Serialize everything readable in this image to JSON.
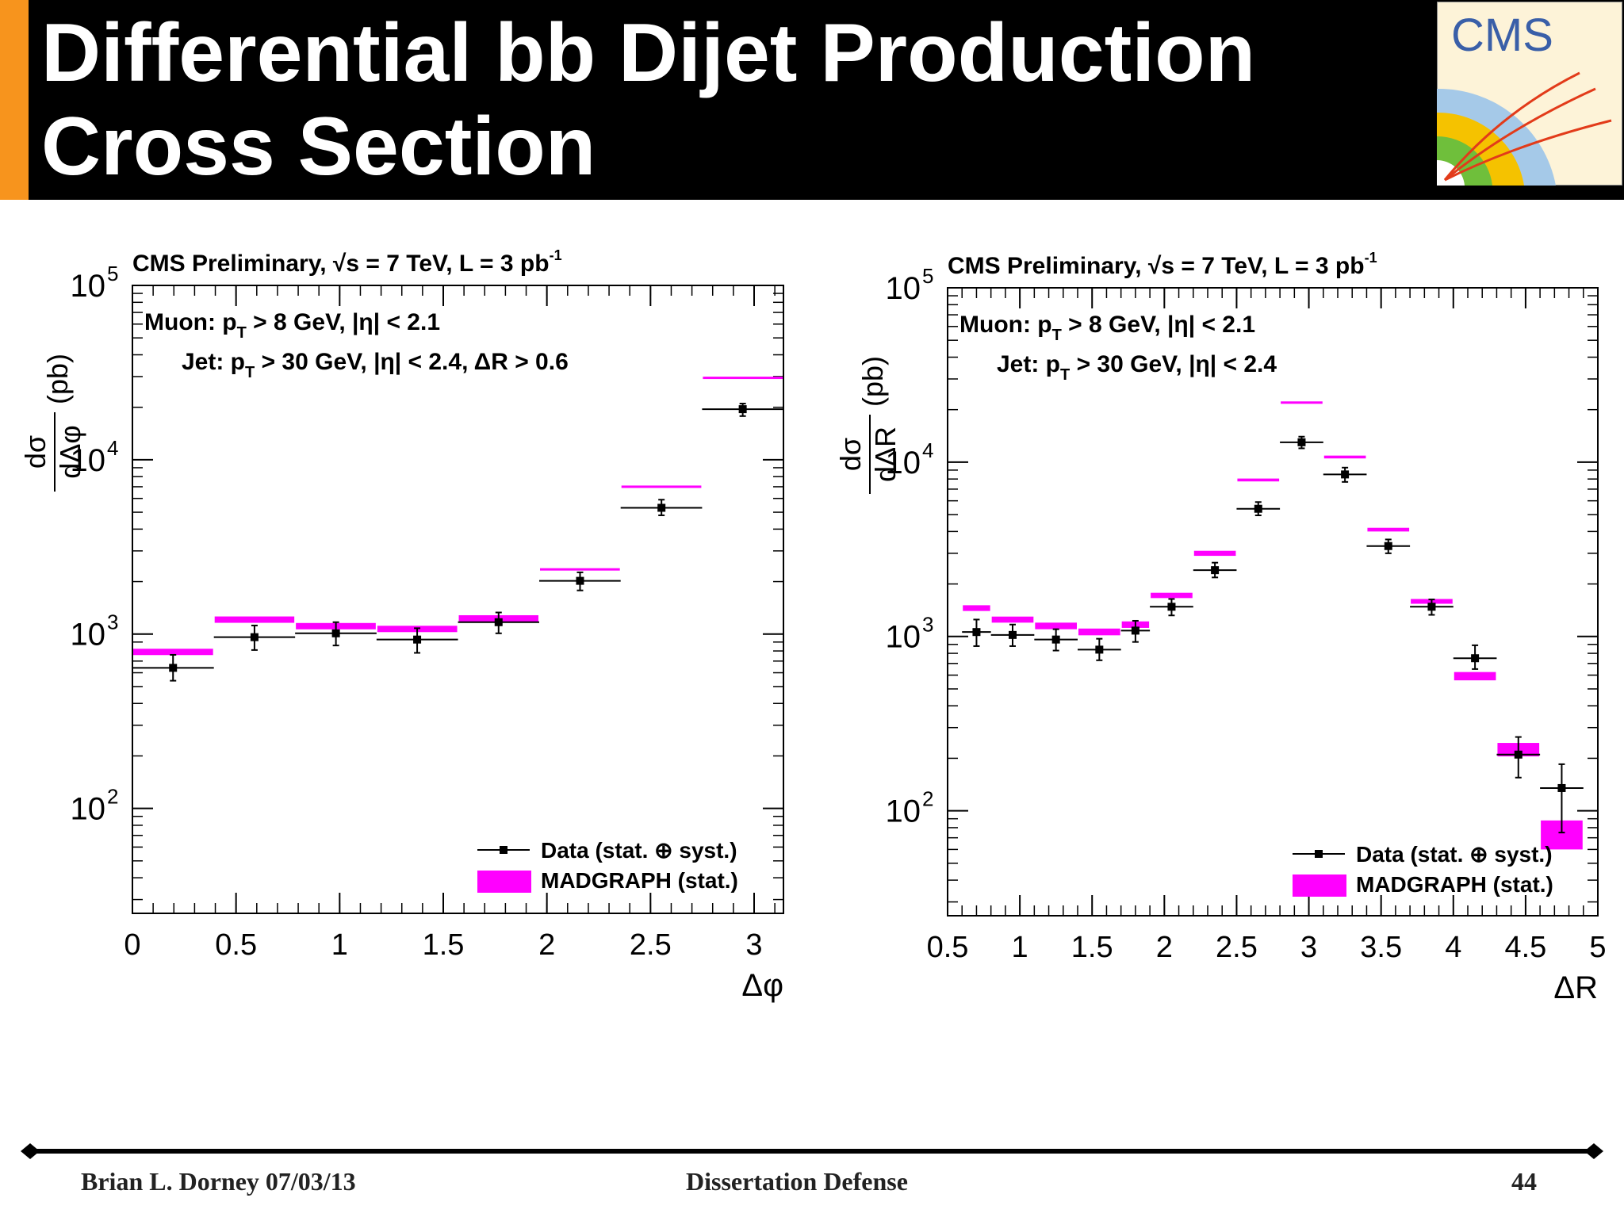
{
  "slide": {
    "title_line1": "Differential bb Dijet Production",
    "title_line2": "Cross Section",
    "logo_text": "CMS",
    "footer_left": "Brian L. Dorney 07/03/13",
    "footer_center": "Dissertation Defense",
    "footer_right": "44",
    "colors": {
      "accent": "#f7941d",
      "title_bg": "#000000",
      "madgraph": "#ff00ff",
      "data": "#000000",
      "logo_text": "#3a5fa8"
    }
  },
  "chart_data": [
    {
      "type": "scatter",
      "title": "CMS Preliminary, √s = 7 TeV, L = 3 pb",
      "title_superscript": "-1",
      "xlabel": "Δφ",
      "ylabel_numerator": "dσ",
      "ylabel_denominator": "dΔφ",
      "ylabel_unit": "(pb)",
      "yscale": "log",
      "xlim": [
        0,
        3.1416
      ],
      "ylim": [
        25,
        100000
      ],
      "xticks": [
        "0",
        "0.5",
        "1",
        "1.5",
        "2",
        "2.5",
        "3"
      ],
      "yticks": [
        "10",
        "10",
        "10",
        "10"
      ],
      "yticks_exp": [
        "2",
        "3",
        "4",
        "5"
      ],
      "cuts_line1": "Muon: p",
      "cuts_line1_sub": "T",
      "cuts_line1_rest": " > 8 GeV, |η| < 2.1",
      "cuts_line2": "Jet: p",
      "cuts_line2_sub": "T",
      "cuts_line2_rest": " > 30 GeV, |η| < 2.4, ΔR > 0.6",
      "legend": [
        "Data (stat. ⊕ syst.)",
        "MADGRAPH (stat.)"
      ],
      "series": [
        {
          "name": "Data (stat. ⊕ syst.)",
          "bins": [
            [
              0,
              0.393
            ],
            [
              0.393,
              0.785
            ],
            [
              0.785,
              1.178
            ],
            [
              1.178,
              1.571
            ],
            [
              1.571,
              1.963
            ],
            [
              1.963,
              2.356
            ],
            [
              2.356,
              2.749
            ],
            [
              2.749,
              3.142
            ]
          ],
          "x": [
            0.196,
            0.589,
            0.982,
            1.374,
            1.767,
            2.16,
            2.553,
            2.945
          ],
          "y": [
            640,
            960,
            1010,
            930,
            1170,
            2020,
            5300,
            19500
          ],
          "y_low": [
            540,
            810,
            860,
            780,
            1010,
            1780,
            4800,
            17800
          ],
          "y_high": [
            760,
            1120,
            1170,
            1080,
            1330,
            2260,
            5900,
            21000
          ]
        },
        {
          "name": "MADGRAPH (stat.)",
          "x": [
            0.196,
            0.589,
            0.982,
            1.374,
            1.767,
            2.16,
            2.553,
            2.945
          ],
          "y": [
            790,
            1210,
            1110,
            1070,
            1230,
            2350,
            7000,
            29500
          ]
        }
      ]
    },
    {
      "type": "scatter",
      "title": "CMS Preliminary, √s = 7 TeV, L = 3 pb",
      "title_superscript": "-1",
      "xlabel": "ΔR",
      "ylabel_numerator": "dσ",
      "ylabel_denominator": "dΔR",
      "ylabel_unit": "(pb)",
      "yscale": "log",
      "xlim": [
        0.5,
        5
      ],
      "ylim": [
        25,
        100000
      ],
      "xticks": [
        "0.5",
        "1",
        "1.5",
        "2",
        "2.5",
        "3",
        "3.5",
        "4",
        "4.5",
        "5"
      ],
      "yticks": [
        "10",
        "10",
        "10",
        "10"
      ],
      "yticks_exp": [
        "2",
        "3",
        "4",
        "5"
      ],
      "cuts_line1": "Muon: p",
      "cuts_line1_sub": "T",
      "cuts_line1_rest": " > 8 GeV, |η| < 2.1",
      "cuts_line2": "Jet: p",
      "cuts_line2_sub": "T",
      "cuts_line2_rest": " > 30 GeV, |η| < 2.4",
      "legend": [
        "Data (stat. ⊕ syst.)",
        "MADGRAPH (stat.)"
      ],
      "series": [
        {
          "name": "Data (stat. ⊕ syst.)",
          "bins": [
            [
              0.6,
              0.8
            ],
            [
              0.8,
              1.1
            ],
            [
              1.1,
              1.4
            ],
            [
              1.4,
              1.7
            ],
            [
              1.7,
              1.9
            ],
            [
              1.9,
              2.2
            ],
            [
              2.2,
              2.5
            ],
            [
              2.5,
              2.8
            ],
            [
              2.8,
              3.1
            ],
            [
              3.1,
              3.4
            ],
            [
              3.4,
              3.7
            ],
            [
              3.7,
              4.0
            ],
            [
              4.0,
              4.3
            ],
            [
              4.3,
              4.6
            ],
            [
              4.6,
              4.9
            ]
          ],
          "x": [
            0.7,
            0.95,
            1.25,
            1.55,
            1.8,
            2.05,
            2.35,
            2.65,
            2.95,
            3.25,
            3.55,
            3.85,
            4.15,
            4.45,
            4.75
          ],
          "y": [
            1060,
            1020,
            960,
            840,
            1080,
            1480,
            2400,
            5400,
            13000,
            8500,
            3300,
            1480,
            750,
            210,
            135
          ],
          "y_low": [
            880,
            880,
            830,
            730,
            930,
            1320,
            2180,
            4950,
            12000,
            7700,
            3000,
            1330,
            650,
            155,
            75
          ],
          "y_high": [
            1250,
            1170,
            1100,
            970,
            1230,
            1640,
            2650,
            5900,
            14000,
            9300,
            3600,
            1630,
            890,
            265,
            185
          ]
        },
        {
          "name": "MADGRAPH (stat.)",
          "bins": [
            [
              0.6,
              0.8
            ],
            [
              0.8,
              1.1
            ],
            [
              1.1,
              1.4
            ],
            [
              1.4,
              1.7
            ],
            [
              1.7,
              1.9
            ],
            [
              1.9,
              2.2
            ],
            [
              2.2,
              2.5
            ],
            [
              2.5,
              2.8
            ],
            [
              2.8,
              3.1
            ],
            [
              3.1,
              3.4
            ],
            [
              3.4,
              3.7
            ],
            [
              3.7,
              4.0
            ],
            [
              4.0,
              4.3
            ],
            [
              4.3,
              4.6
            ],
            [
              4.6,
              4.9
            ]
          ],
          "x": [
            0.7,
            0.95,
            1.25,
            1.55,
            1.8,
            2.05,
            2.35,
            2.65,
            2.95,
            3.25,
            3.55,
            3.85,
            4.15,
            4.45,
            4.75
          ],
          "y": [
            1450,
            1250,
            1150,
            1060,
            1170,
            1720,
            3000,
            7900,
            22000,
            10700,
            4100,
            1590,
            590,
            225,
            72
          ],
          "y_band": [
            [
              1400,
              1510
            ],
            [
              1200,
              1300
            ],
            [
              1100,
              1200
            ],
            [
              1015,
              1110
            ],
            [
              1120,
              1220
            ],
            [
              1660,
              1780
            ],
            [
              2900,
              3100
            ],
            [
              7750,
              8050
            ],
            [
              21700,
              22300
            ],
            [
              10500,
              10900
            ],
            [
              4000,
              4200
            ],
            [
              1540,
              1640
            ],
            [
              560,
              625
            ],
            [
              205,
              245
            ],
            [
              60,
              88
            ]
          ]
        }
      ]
    }
  ]
}
